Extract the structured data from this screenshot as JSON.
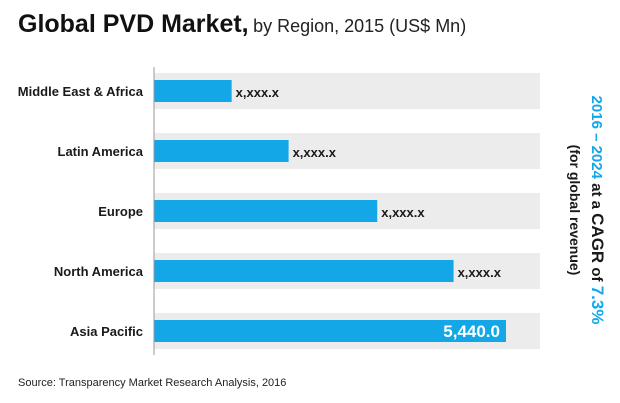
{
  "title": {
    "main": "Global PVD Market,",
    "sub": "by Region, 2015 (US$ Mn)"
  },
  "chart_data": {
    "type": "bar",
    "orientation": "horizontal",
    "title": "Global PVD Market, by Region, 2015 (US$ Mn)",
    "categories": [
      "Middle East & Africa",
      "Latin America",
      "Europe",
      "North America",
      "Asia Pacific"
    ],
    "values": [
      1200,
      2080,
      3450,
      4630,
      5440.0
    ],
    "value_labels": [
      "x,xxx.x",
      "x,xxx.x",
      "x,xxx.x",
      "x,xxx.x",
      "5,440.0"
    ],
    "xlim": [
      0,
      5440.0
    ],
    "grid": false,
    "colors": {
      "bar": "#14a7e8",
      "track": "#ececec",
      "accent": "#14a7e8"
    }
  },
  "side_note": {
    "line1": "2016 – 2024 at a CAGR of 7.3%",
    "line2": "(for global revenue)"
  },
  "source": "Source: Transparency Market Research Analysis, 2016"
}
